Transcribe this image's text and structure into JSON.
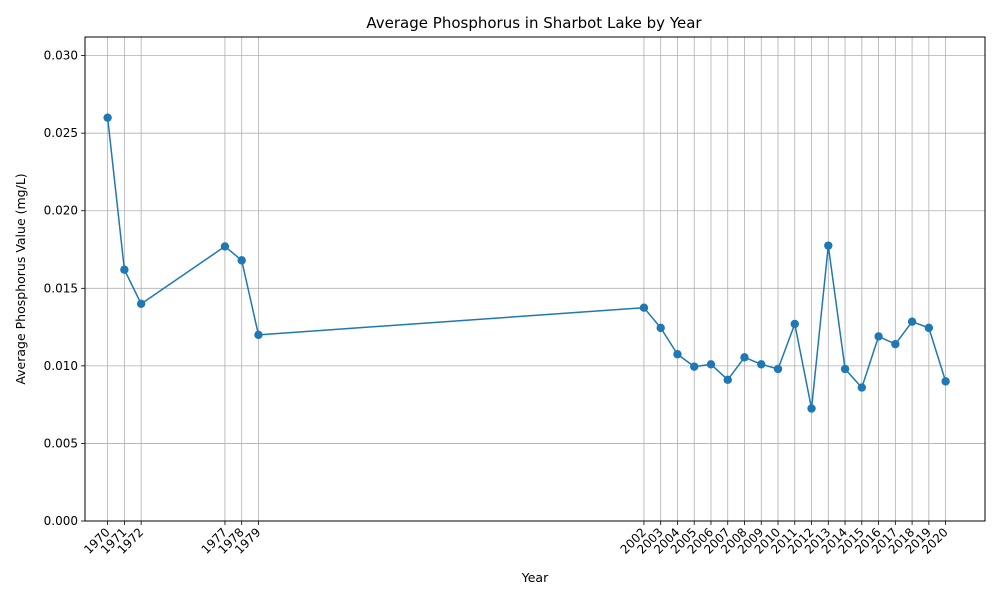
{
  "chart_data": {
    "type": "line",
    "title": "Average Phosphorus in Sharbot Lake by Year",
    "xlabel": "Year",
    "ylabel": "Average Phosphorus Value (mg/L)",
    "x": [
      1970,
      1971,
      1972,
      1977,
      1978,
      1979,
      2002,
      2003,
      2004,
      2005,
      2006,
      2007,
      2008,
      2009,
      2010,
      2011,
      2012,
      2013,
      2014,
      2015,
      2016,
      2017,
      2018,
      2019,
      2020
    ],
    "series": [
      {
        "values": [
          0.026,
          0.0162,
          0.014,
          0.0177,
          0.0168,
          0.012,
          0.01375,
          0.01245,
          0.01075,
          0.00995,
          0.0101,
          0.0091,
          0.01055,
          0.0101,
          0.0098,
          0.0127,
          0.00725,
          0.01775,
          0.0098,
          0.0086,
          0.0119,
          0.0114,
          0.01285,
          0.01245,
          0.009
        ],
        "color": "#1f77b4",
        "marker": "circle"
      }
    ],
    "xticks": [
      "1970",
      "1971",
      "1972",
      "1977",
      "1978",
      "1979",
      "2002",
      "2003",
      "2004",
      "2005",
      "2006",
      "2007",
      "2008",
      "2009",
      "2010",
      "2011",
      "2012",
      "2013",
      "2014",
      "2015",
      "2016",
      "2017",
      "2018",
      "2019",
      "2020"
    ],
    "yticks": [
      "0.000",
      "0.005",
      "0.010",
      "0.015",
      "0.020",
      "0.025",
      "0.030"
    ],
    "ytick_values": [
      0.0,
      0.005,
      0.01,
      0.015,
      0.02,
      0.025,
      0.03
    ],
    "xlim": [
      1968.65,
      2022.35
    ],
    "ylim": [
      0.0,
      0.0312
    ],
    "grid": true
  }
}
